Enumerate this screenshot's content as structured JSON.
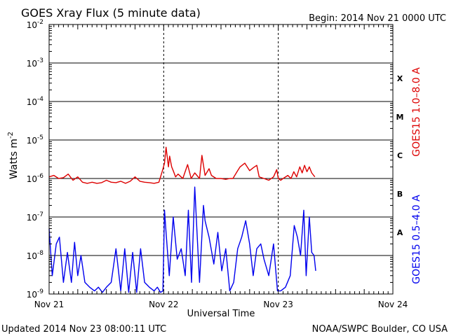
{
  "header": {
    "title": "GOES Xray Flux (5 minute data)",
    "begin": "Begin:  2014 Nov 21 0000 UTC"
  },
  "footer": {
    "updated": "Updated 2014 Nov 23 08:00:11 UTC",
    "credit": "NOAA/SWPC Boulder, CO USA"
  },
  "colors": {
    "long_channel": "#dd0000",
    "short_channel": "#0000ee",
    "grid": "#000000",
    "background": "#ffffff"
  },
  "chart_data": {
    "type": "line",
    "title": "GOES Xray Flux (5 minute data)",
    "xlabel": "Universal Time",
    "ylabel": "Watts m",
    "ylabel_exponent": "-2",
    "y_scale": "log",
    "ylim": [
      1e-09,
      0.01
    ],
    "xlim": [
      "2014-11-21 00:00",
      "2014-11-24 00:00"
    ],
    "x_tick_labels": [
      "Nov 21",
      "Nov 22",
      "Nov 23",
      "Nov 24"
    ],
    "x_tick_values": [
      "2014-11-21 00:00",
      "2014-11-22 00:00",
      "2014-11-23 00:00",
      "2014-11-24 00:00"
    ],
    "y_ticks": [
      {
        "base": "10",
        "exp": "-2",
        "value": 0.01
      },
      {
        "base": "10",
        "exp": "-3",
        "value": 0.001
      },
      {
        "base": "10",
        "exp": "-4",
        "value": 0.0001
      },
      {
        "base": "10",
        "exp": "-5",
        "value": 1e-05
      },
      {
        "base": "10",
        "exp": "-6",
        "value": 1e-06
      },
      {
        "base": "10",
        "exp": "-7",
        "value": 1e-07
      },
      {
        "base": "10",
        "exp": "-8",
        "value": 1e-08
      },
      {
        "base": "10",
        "exp": "-9",
        "value": 1e-09
      }
    ],
    "flare_classes": [
      {
        "label": "X",
        "value": 0.0004
      },
      {
        "label": "M",
        "value": 4e-05
      },
      {
        "label": "C",
        "value": 4e-06
      },
      {
        "label": "B",
        "value": 4e-07
      },
      {
        "label": "A",
        "value": 4e-08
      }
    ],
    "grid": true,
    "series": [
      {
        "name": "GOES15 1.0–8.0 A",
        "color": "#dd0000",
        "x": [
          "2014-11-21 00:00",
          "2014-11-21 01:00",
          "2014-11-21 02:00",
          "2014-11-21 03:00",
          "2014-11-21 04:00",
          "2014-11-21 05:00",
          "2014-11-21 06:00",
          "2014-11-21 07:00",
          "2014-11-21 08:00",
          "2014-11-21 09:00",
          "2014-11-21 10:00",
          "2014-11-21 11:00",
          "2014-11-21 12:00",
          "2014-11-21 13:00",
          "2014-11-21 14:00",
          "2014-11-21 15:00",
          "2014-11-21 16:00",
          "2014-11-21 17:00",
          "2014-11-21 18:00",
          "2014-11-21 19:00",
          "2014-11-21 20:00",
          "2014-11-21 21:00",
          "2014-11-21 22:00",
          "2014-11-21 23:00",
          "2014-11-21 23:40",
          "2014-11-22 00:10",
          "2014-11-22 00:30",
          "2014-11-22 01:00",
          "2014-11-22 01:15",
          "2014-11-22 01:40",
          "2014-11-22 02:00",
          "2014-11-22 02:30",
          "2014-11-22 03:00",
          "2014-11-22 04:00",
          "2014-11-22 05:00",
          "2014-11-22 05:45",
          "2014-11-22 06:30",
          "2014-11-22 07:30",
          "2014-11-22 08:00",
          "2014-11-22 08:40",
          "2014-11-22 09:30",
          "2014-11-22 10:00",
          "2014-11-22 11:00",
          "2014-11-22 12:00",
          "2014-11-22 13:00",
          "2014-11-22 13:50",
          "2014-11-22 14:30",
          "2014-11-22 15:30",
          "2014-11-22 16:00",
          "2014-11-22 17:00",
          "2014-11-22 18:00",
          "2014-11-22 18:45",
          "2014-11-22 19:30",
          "2014-11-22 20:00",
          "2014-11-22 21:00",
          "2014-11-22 22:00",
          "2014-11-22 23:00",
          "2014-11-22 23:40",
          "2014-11-23 00:00",
          "2014-11-23 00:30",
          "2014-11-23 01:00",
          "2014-11-23 02:00",
          "2014-11-23 02:40",
          "2014-11-23 03:15",
          "2014-11-23 03:50",
          "2014-11-23 04:30",
          "2014-11-23 05:00",
          "2014-11-23 05:30",
          "2014-11-23 06:00",
          "2014-11-23 06:30",
          "2014-11-23 07:00",
          "2014-11-23 07:40"
        ],
        "values": [
          1.1e-06,
          1.2e-06,
          1e-06,
          1.05e-06,
          1.3e-06,
          9e-07,
          1.1e-06,
          8e-07,
          7.5e-07,
          8e-07,
          7.5e-07,
          7.8e-07,
          9e-07,
          8e-07,
          7.8e-07,
          8.5e-07,
          7.5e-07,
          8.5e-07,
          1.1e-06,
          8.5e-07,
          8e-07,
          7.8e-07,
          7.5e-07,
          8e-07,
          1.5e-06,
          2.5e-06,
          6.5e-06,
          2e-06,
          3.8e-06,
          2e-06,
          1.6e-06,
          1.1e-06,
          1.3e-06,
          1e-06,
          2.3e-06,
          1e-06,
          1.4e-06,
          1e-06,
          4e-06,
          1.2e-06,
          1.8e-06,
          1.2e-06,
          1e-06,
          1e-06,
          9.5e-07,
          1e-06,
          1e-06,
          1.6e-06,
          2e-06,
          2.5e-06,
          1.6e-06,
          1.9e-06,
          2.2e-06,
          1.1e-06,
          1e-06,
          9e-07,
          1.1e-06,
          1.7e-06,
          1e-06,
          9e-07,
          1e-06,
          1.2e-06,
          1e-06,
          1.5e-06,
          1.1e-06,
          2e-06,
          1.4e-06,
          2.2e-06,
          1.5e-06,
          2e-06,
          1.4e-06,
          1.1e-06
        ]
      },
      {
        "name": "GOES15 0.5–4.0 A",
        "color": "#0000ee",
        "x": [
          "2014-11-21 00:00",
          "2014-11-21 00:40",
          "2014-11-21 01:30",
          "2014-11-21 02:10",
          "2014-11-21 03:00",
          "2014-11-21 03:50",
          "2014-11-21 04:40",
          "2014-11-21 05:20",
          "2014-11-21 06:00",
          "2014-11-21 06:40",
          "2014-11-21 07:30",
          "2014-11-21 08:30",
          "2014-11-21 09:30",
          "2014-11-21 10:20",
          "2014-11-21 11:10",
          "2014-11-21 12:00",
          "2014-11-21 13:00",
          "2014-11-21 14:00",
          "2014-11-21 15:00",
          "2014-11-21 15:50",
          "2014-11-21 16:40",
          "2014-11-21 17:30",
          "2014-11-21 18:20",
          "2014-11-21 19:10",
          "2014-11-21 20:00",
          "2014-11-21 21:00",
          "2014-11-21 22:00",
          "2014-11-21 22:40",
          "2014-11-21 23:20",
          "2014-11-21 23:50",
          "2014-11-22 00:10",
          "2014-11-22 00:30",
          "2014-11-22 01:10",
          "2014-11-22 02:00",
          "2014-11-22 02:50",
          "2014-11-22 03:40",
          "2014-11-22 04:30",
          "2014-11-22 05:10",
          "2014-11-22 05:50",
          "2014-11-22 06:30",
          "2014-11-22 07:30",
          "2014-11-22 08:20",
          "2014-11-22 08:40",
          "2014-11-22 09:30",
          "2014-11-22 10:30",
          "2014-11-22 11:20",
          "2014-11-22 12:10",
          "2014-11-22 13:00",
          "2014-11-22 13:50",
          "2014-11-22 14:40",
          "2014-11-22 15:30",
          "2014-11-22 16:20",
          "2014-11-22 17:10",
          "2014-11-22 18:00",
          "2014-11-22 18:45",
          "2014-11-22 19:30",
          "2014-11-22 20:20",
          "2014-11-22 21:00",
          "2014-11-22 22:00",
          "2014-11-22 23:00",
          "2014-11-22 23:50",
          "2014-11-23 00:30",
          "2014-11-23 01:30",
          "2014-11-23 02:30",
          "2014-11-23 03:20",
          "2014-11-23 04:00",
          "2014-11-23 04:40",
          "2014-11-23 05:20",
          "2014-11-23 05:50",
          "2014-11-23 06:30",
          "2014-11-23 07:00",
          "2014-11-23 07:30",
          "2014-11-23 07:50"
        ],
        "values": [
          5e-08,
          3e-09,
          2e-08,
          3e-08,
          2e-09,
          1.2e-08,
          2e-09,
          2.2e-08,
          3e-09,
          1e-08,
          2e-09,
          1.5e-09,
          1.2e-09,
          1.5e-09,
          1.1e-09,
          1.5e-09,
          2e-09,
          1.5e-08,
          1.2e-09,
          1.5e-08,
          1.1e-09,
          1.2e-08,
          1.1e-09,
          1.5e-08,
          2e-09,
          1.5e-09,
          1.2e-09,
          1.5e-09,
          1.1e-09,
          1.2e-09,
          1.5e-07,
          4e-08,
          3e-09,
          1e-07,
          8e-09,
          1.5e-08,
          3e-09,
          1.5e-07,
          2e-09,
          6e-07,
          2e-09,
          2e-07,
          8e-08,
          3e-08,
          6e-09,
          4e-08,
          4e-09,
          1.5e-08,
          1.2e-09,
          2e-09,
          1.5e-08,
          3e-08,
          8e-08,
          2e-08,
          3e-09,
          1.5e-08,
          2e-08,
          8e-09,
          3e-09,
          2e-08,
          1.2e-09,
          1.2e-09,
          1.5e-09,
          3e-09,
          6e-08,
          3e-08,
          1e-08,
          1.5e-07,
          3e-09,
          1e-07,
          1.2e-08,
          1e-08,
          4e-09
        ]
      }
    ]
  }
}
